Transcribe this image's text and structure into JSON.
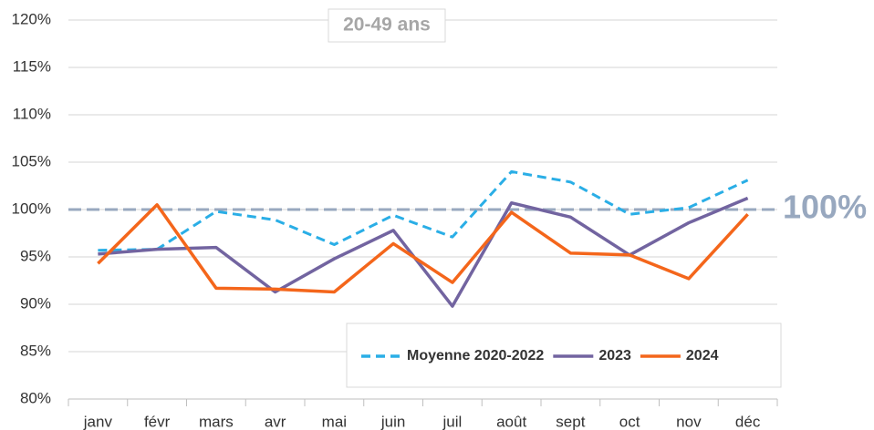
{
  "chart_data": {
    "type": "line",
    "title": "20-49 ans",
    "categories": [
      "janv",
      "févr",
      "mars",
      "avr",
      "mai",
      "juin",
      "juil",
      "août",
      "sept",
      "oct",
      "nov",
      "déc"
    ],
    "series": [
      {
        "name": "Moyenne 2020-2022",
        "color": "#2aaee6",
        "dashed": true,
        "values": [
          95.7,
          95.8,
          99.8,
          98.9,
          96.3,
          99.4,
          97.1,
          104.0,
          102.9,
          99.5,
          100.2,
          103.1
        ]
      },
      {
        "name": "2023",
        "color": "#7264a0",
        "dashed": false,
        "values": [
          95.3,
          95.8,
          96.0,
          91.3,
          94.8,
          97.8,
          89.8,
          100.7,
          99.2,
          95.2,
          98.6,
          101.2
        ]
      },
      {
        "name": "2024",
        "color": "#f4661b",
        "dashed": false,
        "values": [
          94.3,
          100.5,
          91.7,
          91.6,
          91.3,
          96.4,
          92.3,
          99.7,
          95.4,
          95.2,
          92.7,
          99.5
        ]
      }
    ],
    "reference": {
      "value": 100,
      "label": "100%",
      "color": "#98a8bf"
    },
    "ylim": [
      80,
      120
    ],
    "yticks": [
      {
        "value": 80,
        "label": "80%"
      },
      {
        "value": 85,
        "label": "85%"
      },
      {
        "value": 90,
        "label": "90%"
      },
      {
        "value": 95,
        "label": "95%"
      },
      {
        "value": 100,
        "label": "100%"
      },
      {
        "value": 105,
        "label": "105%"
      },
      {
        "value": 110,
        "label": "110%"
      },
      {
        "value": 115,
        "label": "115%"
      },
      {
        "value": 120,
        "label": "120%"
      }
    ],
    "grid": true,
    "legend": "bottom-right"
  }
}
